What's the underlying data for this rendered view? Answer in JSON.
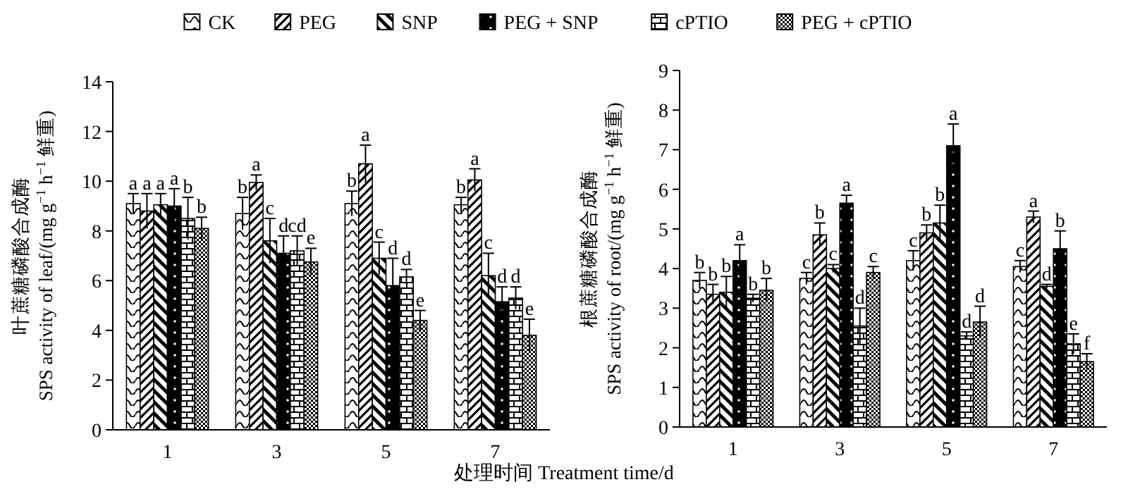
{
  "chart_data": [
    {
      "type": "bar",
      "categories": [
        "1",
        "3",
        "5",
        "7"
      ],
      "xlabel": "处理时间 Treatment time/d",
      "ylabel": "叶蔗糖磷酸合成酶\nSPS activity of leaf/(mg g$^{−1}$ h$^{−1}$ 鲜重)",
      "ylim": [
        0,
        14
      ],
      "yticks": [
        0,
        2,
        4,
        6,
        8,
        10,
        12,
        14
      ],
      "legend": "top",
      "series": [
        {
          "name": "CK",
          "color": "#000000",
          "values": [
            9.1,
            8.7,
            9.1,
            9.05
          ],
          "errors": [
            0.4,
            0.65,
            0.5,
            0.3
          ],
          "value_labels": [
            "a",
            "b",
            "b",
            "b"
          ]
        },
        {
          "name": "PEG",
          "color": "#000000",
          "values": [
            8.8,
            9.95,
            10.7,
            10.05
          ],
          "errors": [
            0.7,
            0.3,
            0.75,
            0.45
          ],
          "value_labels": [
            "a",
            "a",
            "a",
            "a"
          ]
        },
        {
          "name": "SNP",
          "color": "#000000",
          "values": [
            9.05,
            7.6,
            6.9,
            6.2
          ],
          "errors": [
            0.45,
            0.9,
            0.65,
            0.9
          ],
          "value_labels": [
            "a",
            "c",
            "c",
            "c"
          ]
        },
        {
          "name": "PEG + SNP",
          "color": "#000000",
          "values": [
            9.0,
            7.1,
            5.8,
            5.15
          ],
          "errors": [
            0.7,
            0.7,
            1.1,
            0.6
          ],
          "value_labels": [
            "a",
            "d",
            "d",
            "d"
          ]
        },
        {
          "name": "cPTIO",
          "color": "#000000",
          "values": [
            8.5,
            7.2,
            6.15,
            5.3
          ],
          "errors": [
            0.85,
            0.6,
            0.3,
            0.45
          ],
          "value_labels": [
            "b",
            "cd",
            "d",
            "d"
          ]
        },
        {
          "name": "PEG + cPTIO",
          "color": "#000000",
          "values": [
            8.1,
            6.75,
            4.4,
            3.8
          ],
          "errors": [
            0.45,
            0.55,
            0.4,
            0.65
          ],
          "value_labels": [
            "b",
            "e",
            "e",
            "e"
          ]
        }
      ]
    },
    {
      "type": "bar",
      "categories": [
        "1",
        "3",
        "5",
        "7"
      ],
      "ylabel": "根蔗糖磷酸合成酶\nSPS activity of root/(mg g$^{−1}$ h$^{−1}$ 鲜重)",
      "ylim": [
        0,
        9
      ],
      "yticks": [
        0,
        1,
        2,
        3,
        4,
        5,
        6,
        7,
        8,
        9
      ],
      "series": [
        {
          "color": "#000000",
          "values": [
            3.7,
            3.75,
            4.2,
            4.05
          ],
          "errors": [
            0.2,
            0.15,
            0.25,
            0.15
          ],
          "value_labels": [
            "b",
            "c",
            "c",
            "c"
          ]
        },
        {
          "color": "#000000",
          "values": [
            3.35,
            4.85,
            4.9,
            5.3
          ],
          "errors": [
            0.25,
            0.3,
            0.2,
            0.15
          ],
          "value_labels": [
            "b",
            "b",
            "b",
            "a"
          ]
        },
        {
          "color": "#000000",
          "values": [
            3.4,
            4.0,
            5.15,
            3.55
          ],
          "errors": [
            0.4,
            0.1,
            0.45,
            0.05
          ],
          "value_labels": [
            "b",
            "c",
            "b",
            "d"
          ]
        },
        {
          "color": "#000000",
          "values": [
            4.2,
            5.65,
            7.1,
            4.5
          ],
          "errors": [
            0.4,
            0.2,
            0.55,
            0.45
          ],
          "value_labels": [
            "a",
            "a",
            "a",
            "b"
          ]
        },
        {
          "color": "#000000",
          "values": [
            3.25,
            2.55,
            2.3,
            2.1
          ],
          "errors": [
            0.1,
            0.45,
            0.1,
            0.25
          ],
          "value_labels": [
            "b",
            "d",
            "d",
            "e"
          ]
        },
        {
          "color": "#000000",
          "values": [
            3.45,
            3.9,
            2.65,
            1.65
          ],
          "errors": [
            0.3,
            0.15,
            0.4,
            0.2
          ],
          "value_labels": [
            "b",
            "c",
            "d",
            "f"
          ]
        }
      ]
    }
  ]
}
